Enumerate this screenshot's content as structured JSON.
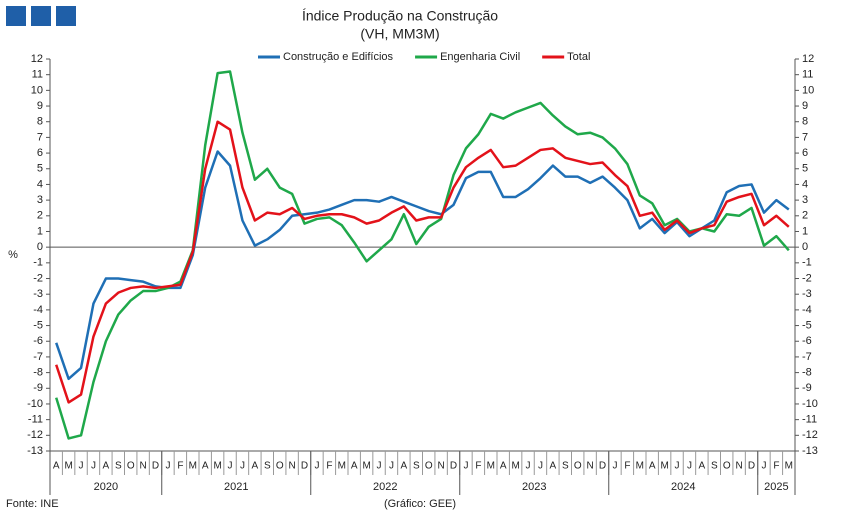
{
  "chart_data": {
    "type": "line",
    "title": "Índice Produção na Construção",
    "subtitle": "(VH, MM3M)",
    "y_label": "%",
    "source": "Fonte: INE",
    "credit": "(Gráfico: GEE)",
    "categories": [
      "A",
      "M",
      "J",
      "J",
      "A",
      "S",
      "O",
      "N",
      "D",
      "J",
      "F",
      "M",
      "A",
      "M",
      "J",
      "J",
      "A",
      "S",
      "O",
      "N",
      "D",
      "J",
      "F",
      "M",
      "A",
      "M",
      "J",
      "J",
      "A",
      "S",
      "O",
      "N",
      "D",
      "J",
      "F",
      "M",
      "A",
      "M",
      "J",
      "J",
      "A",
      "S",
      "O",
      "N",
      "D",
      "J",
      "F",
      "M",
      "A",
      "M",
      "J",
      "J",
      "A",
      "S",
      "O",
      "N",
      "D",
      "J",
      "F",
      "M"
    ],
    "years": [
      "2020",
      "2021",
      "2022",
      "2023",
      "2024",
      "2025"
    ],
    "ylim": [
      -13,
      12
    ],
    "yticks": [
      -13,
      -12,
      -11,
      -10,
      -9,
      -8,
      -7,
      -6,
      -5,
      -4,
      -3,
      -2,
      -1,
      0,
      1,
      2,
      3,
      4,
      5,
      6,
      7,
      8,
      9,
      10,
      11,
      12
    ],
    "series": [
      {
        "name": "Construção e Edifícios",
        "color": "#1f6fb5",
        "values": [
          -6.1,
          -8.4,
          -7.7,
          -3.6,
          -2.0,
          -2.0,
          -2.1,
          -2.2,
          -2.5,
          -2.6,
          -2.6,
          -0.5,
          3.8,
          6.1,
          5.2,
          1.7,
          0.1,
          0.5,
          1.1,
          2.0,
          2.1,
          2.2,
          2.4,
          2.7,
          3.0,
          3.0,
          2.9,
          3.2,
          2.9,
          2.6,
          2.3,
          2.1,
          2.7,
          4.4,
          4.8,
          4.8,
          3.2,
          3.2,
          3.7,
          4.4,
          5.2,
          4.5,
          4.5,
          4.1,
          4.5,
          3.8,
          3.0,
          1.2,
          1.8,
          0.9,
          1.6,
          0.7,
          1.2,
          1.7,
          3.5,
          3.9,
          4.0,
          2.2,
          3.0,
          2.4
        ]
      },
      {
        "name": "Engenharia Civil",
        "color": "#1fa84a",
        "values": [
          -9.6,
          -12.2,
          -12.0,
          -8.6,
          -6.0,
          -4.3,
          -3.4,
          -2.8,
          -2.8,
          -2.6,
          -2.2,
          -0.2,
          6.5,
          11.1,
          11.2,
          7.3,
          4.3,
          5.0,
          3.8,
          3.4,
          1.5,
          1.8,
          1.9,
          1.4,
          0.3,
          -0.9,
          -0.2,
          0.5,
          2.1,
          0.2,
          1.3,
          1.8,
          4.6,
          6.3,
          7.2,
          8.5,
          8.2,
          8.6,
          8.9,
          9.2,
          8.4,
          7.7,
          7.2,
          7.3,
          7.0,
          6.3,
          5.3,
          3.3,
          2.8,
          1.4,
          1.8,
          1.0,
          1.2,
          1.0,
          2.1,
          2.0,
          2.5,
          0.1,
          0.7,
          -0.2
        ]
      },
      {
        "name": "Total",
        "color": "#e3121a",
        "values": [
          -7.5,
          -9.9,
          -9.4,
          -5.7,
          -3.6,
          -2.9,
          -2.6,
          -2.5,
          -2.6,
          -2.5,
          -2.4,
          -0.3,
          5.0,
          8.0,
          7.5,
          3.8,
          1.7,
          2.2,
          2.1,
          2.5,
          1.8,
          2.0,
          2.1,
          2.1,
          1.9,
          1.5,
          1.7,
          2.2,
          2.6,
          1.7,
          1.9,
          1.9,
          3.8,
          5.1,
          5.7,
          6.2,
          5.1,
          5.2,
          5.7,
          6.2,
          6.3,
          5.7,
          5.5,
          5.3,
          5.4,
          4.6,
          3.9,
          2.0,
          2.2,
          1.1,
          1.7,
          0.9,
          1.2,
          1.4,
          2.9,
          3.2,
          3.4,
          1.4,
          2.0,
          1.3
        ]
      }
    ]
  }
}
